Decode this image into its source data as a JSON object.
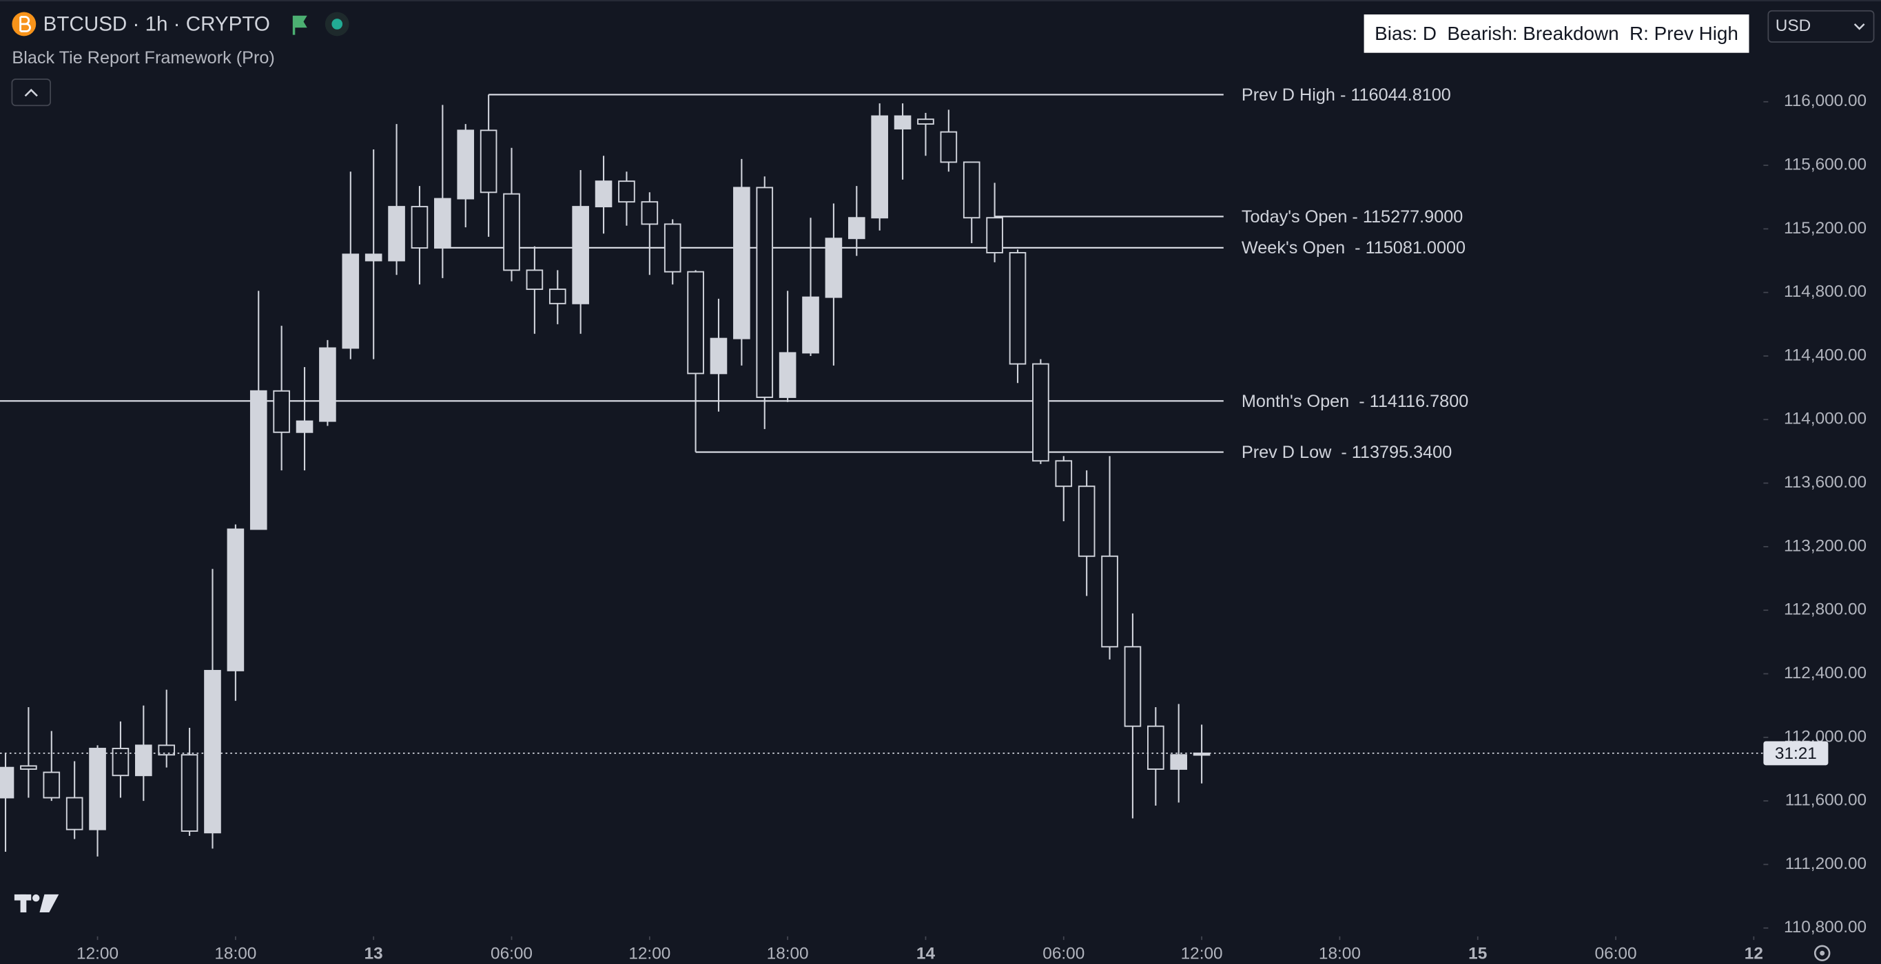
{
  "header": {
    "symbol": "BTCUSD · 1h · CRYPTO",
    "indicator": "Black Tie Report Framework (Pro)",
    "bias": "Bias: D  Bearish: Breakdown  R: Prev High",
    "currency": "USD",
    "countdown": "31:21"
  },
  "chart_data": {
    "type": "candlestick",
    "x": [
      8,
      9,
      10,
      11,
      12,
      13,
      14,
      15,
      16,
      17,
      18,
      19,
      20,
      21,
      22,
      23,
      24,
      25,
      26,
      27,
      28,
      29,
      30,
      31,
      32,
      33,
      34,
      35,
      36,
      37,
      38,
      39,
      40,
      41,
      42,
      43,
      44,
      45,
      46,
      47,
      48,
      49,
      50,
      51,
      52,
      53,
      54,
      55,
      56,
      57,
      58,
      59,
      60
    ],
    "open": [
      111620,
      111820,
      111780,
      111620,
      111420,
      111930,
      111760,
      111950,
      111890,
      111400,
      112420,
      113310,
      114180,
      113920,
      113990,
      114450,
      115000,
      115000,
      115340,
      115080,
      115390,
      115820,
      115420,
      114940,
      114820,
      114730,
      115340,
      115500,
      115370,
      115230,
      114930,
      114290,
      114510,
      115460,
      114140,
      114420,
      114770,
      115140,
      115270,
      115830,
      115890,
      115810,
      115620,
      115270,
      115050,
      114350,
      113740,
      113580,
      113140,
      112570,
      112070,
      111800,
      111890
    ],
    "high": [
      111900,
      112190,
      112040,
      111850,
      111950,
      112100,
      112200,
      112300,
      112060,
      113060,
      113340,
      114810,
      114590,
      114330,
      114500,
      115560,
      115700,
      115860,
      115470,
      115980,
      115860,
      116044.81,
      115710,
      115090,
      114940,
      115570,
      115660,
      115560,
      115430,
      115260,
      114940,
      114760,
      115640,
      115530,
      114810,
      115270,
      115360,
      115470,
      115990,
      115990,
      115930,
      115950,
      115620,
      115490,
      115070,
      114380,
      113770,
      113680,
      113770,
      112780,
      112190,
      112210,
      112080
    ],
    "low": [
      111280,
      111620,
      111600,
      111360,
      111250,
      111620,
      111600,
      111810,
      111380,
      111300,
      112230,
      113310,
      113680,
      113680,
      113960,
      114380,
      114380,
      114910,
      114850,
      114890,
      115210,
      115150,
      114870,
      114540,
      114600,
      114540,
      115170,
      115220,
      114910,
      114850,
      113795.34,
      114050,
      114340,
      113940,
      114110,
      114400,
      114340,
      115030,
      115190,
      115510,
      115660,
      115560,
      115110,
      114990,
      114230,
      113720,
      113360,
      112890,
      112490,
      111490,
      111570,
      111590,
      111710
    ],
    "close": [
      111810,
      111800,
      111620,
      111420,
      111930,
      111760,
      111950,
      111890,
      111410,
      112420,
      113310,
      114180,
      113920,
      113990,
      114450,
      115040,
      115040,
      115340,
      115080,
      115390,
      115820,
      115430,
      114940,
      114820,
      114730,
      115340,
      115500,
      115370,
      115230,
      114930,
      114290,
      114510,
      115460,
      114140,
      114420,
      114770,
      115140,
      115270,
      115910,
      115910,
      115860,
      115620,
      115270,
      115050,
      114350,
      113740,
      113580,
      113140,
      112570,
      112070,
      111800,
      111890,
      111900
    ],
    "up_color": "#d1d4dc",
    "down_color": "#d1d4dc",
    "xlim": [
      7.76,
      84.42
    ],
    "xticks": [
      {
        "value": 12,
        "label": "12:00"
      },
      {
        "value": 18,
        "label": "18:00"
      },
      {
        "value": 24,
        "label": "13"
      },
      {
        "value": 30,
        "label": "06:00"
      },
      {
        "value": 36,
        "label": "12:00"
      },
      {
        "value": 42,
        "label": "18:00"
      },
      {
        "value": 48,
        "label": "14"
      },
      {
        "value": 54,
        "label": "06:00"
      },
      {
        "value": 60,
        "label": "12:00"
      },
      {
        "value": 66,
        "label": "18:00"
      },
      {
        "value": 72,
        "label": "15"
      },
      {
        "value": 78,
        "label": "06:00"
      },
      {
        "value": 84,
        "label": "12"
      }
    ],
    "ylim": [
      110755,
      116640
    ],
    "yticks": [
      {
        "value": 110800,
        "label": "110,800.00"
      },
      {
        "value": 111200,
        "label": "111,200.00"
      },
      {
        "value": 111600,
        "label": "111,600.00"
      },
      {
        "value": 112000,
        "label": "112,000.00"
      },
      {
        "value": 112400,
        "label": "112,400.00"
      },
      {
        "value": 112800,
        "label": "112,800.00"
      },
      {
        "value": 113200,
        "label": "113,200.00"
      },
      {
        "value": 113600,
        "label": "113,600.00"
      },
      {
        "value": 114000,
        "label": "114,000.00"
      },
      {
        "value": 114400,
        "label": "114,400.00"
      },
      {
        "value": 114800,
        "label": "114,800.00"
      },
      {
        "value": 115200,
        "label": "115,200.00"
      },
      {
        "value": 115600,
        "label": "115,600.00"
      },
      {
        "value": 116000,
        "label": "116,000.00"
      }
    ],
    "levels": [
      {
        "label": "Prev D High - 116044.8100",
        "value": 116044.81,
        "from": 29
      },
      {
        "label": "Today's Open - 115277.9000",
        "value": 115277.9,
        "from": 51
      },
      {
        "label": "Week's Open  - 115081.0000",
        "value": 115081,
        "from": 27
      },
      {
        "label": "Month's Open  - 114116.7800",
        "value": 114116.78
      },
      {
        "label": "Prev D Low  - 113795.3400",
        "value": 113795.34,
        "from": 38
      }
    ]
  }
}
